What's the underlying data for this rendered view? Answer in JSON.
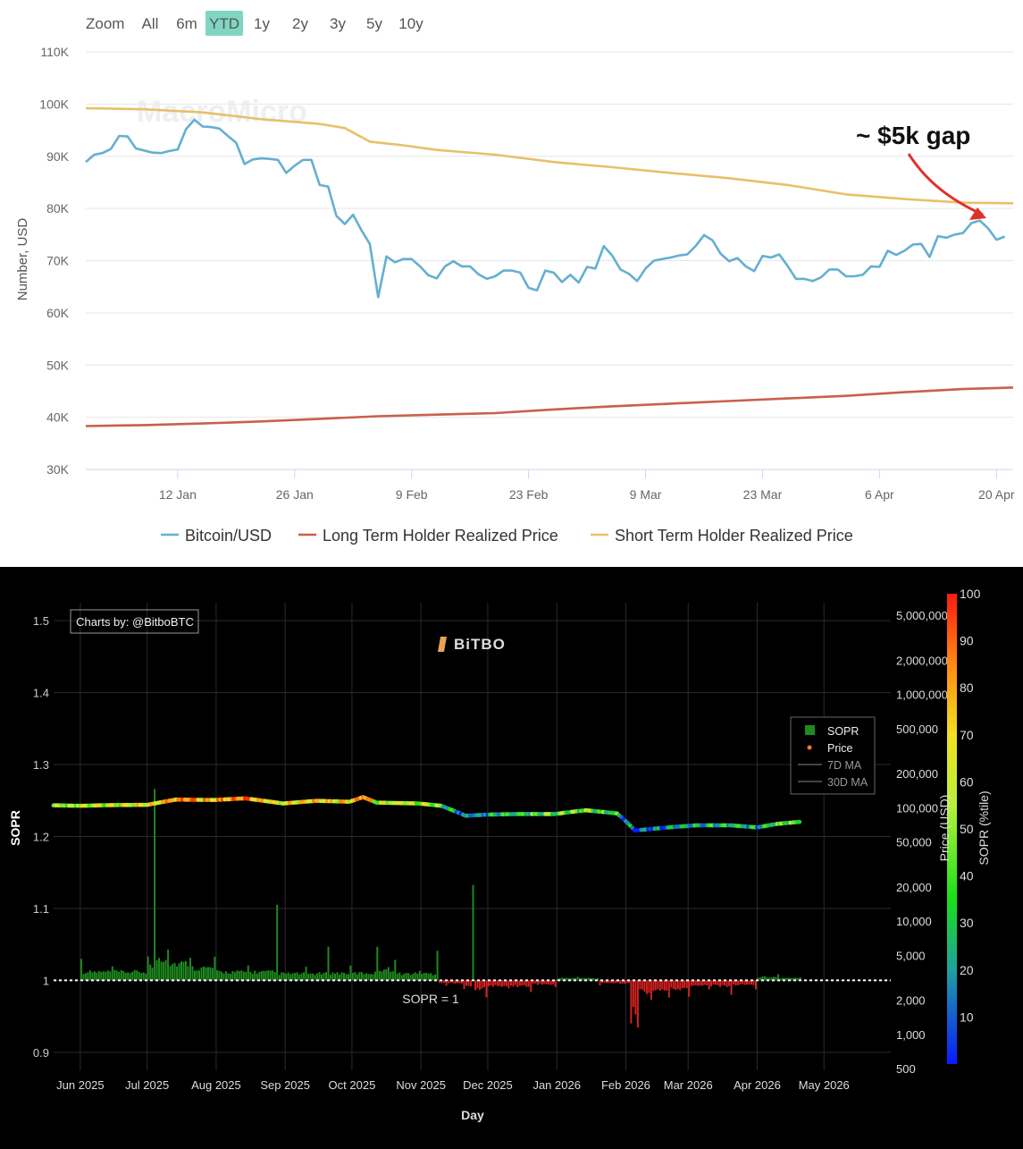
{
  "top_chart": {
    "zoom": {
      "label": "Zoom",
      "options": [
        "All",
        "6m",
        "YTD",
        "1y",
        "2y",
        "3y",
        "5y",
        "10y"
      ],
      "selected": "YTD",
      "selected_color": "#7fd6c2"
    },
    "watermark": "MacroMicro",
    "annotation": "~ $5k gap",
    "annotation_color": "#e0302a"
  },
  "bottom_chart": {
    "credit": "Charts by: @BitboBTC",
    "logo": "BiTBO",
    "sopr_line_label": "SOPR = 1",
    "legend": [
      "SOPR",
      "Price",
      "7D MA",
      "30D MA"
    ]
  },
  "chart_data": [
    {
      "type": "line",
      "title": "",
      "xlabel": "",
      "ylabel": "Number, USD",
      "ylim": [
        30000,
        110000
      ],
      "yticks": [
        "30K",
        "40K",
        "50K",
        "60K",
        "70K",
        "80K",
        "90K",
        "100K",
        "110K"
      ],
      "xticks": [
        "12 Jan",
        "26 Jan",
        "9 Feb",
        "23 Feb",
        "9 Mar",
        "23 Mar",
        "6 Apr",
        "20 Apr"
      ],
      "x_range": [
        "2026-01-01",
        "2026-04-22"
      ],
      "grid": true,
      "legend_position": "bottom",
      "series": [
        {
          "name": "Bitcoin/USD",
          "color": "#65afd1",
          "points": [
            [
              "2026-01-01",
              88900
            ],
            [
              "2026-01-02",
              90300
            ],
            [
              "2026-01-03",
              90600
            ],
            [
              "2026-01-04",
              91400
            ],
            [
              "2026-01-05",
              93900
            ],
            [
              "2026-01-06",
              93800
            ],
            [
              "2026-01-07",
              91500
            ],
            [
              "2026-01-08",
              91100
            ],
            [
              "2026-01-09",
              90700
            ],
            [
              "2026-01-10",
              90600
            ],
            [
              "2026-01-11",
              91000
            ],
            [
              "2026-01-12",
              91300
            ],
            [
              "2026-01-13",
              95200
            ],
            [
              "2026-01-14",
              97000
            ],
            [
              "2026-01-15",
              95700
            ],
            [
              "2026-01-16",
              95600
            ],
            [
              "2026-01-17",
              95300
            ],
            [
              "2026-01-18",
              93900
            ],
            [
              "2026-01-19",
              92600
            ],
            [
              "2026-01-20",
              88500
            ],
            [
              "2026-01-21",
              89400
            ],
            [
              "2026-01-22",
              89600
            ],
            [
              "2026-01-23",
              89500
            ],
            [
              "2026-01-24",
              89300
            ],
            [
              "2026-01-25",
              86800
            ],
            [
              "2026-01-26",
              88200
            ],
            [
              "2026-01-27",
              89300
            ],
            [
              "2026-01-28",
              89300
            ],
            [
              "2026-01-29",
              84500
            ],
            [
              "2026-01-30",
              84200
            ],
            [
              "2026-01-31",
              78600
            ],
            [
              "2026-02-01",
              77000
            ],
            [
              "2026-02-02",
              78800
            ],
            [
              "2026-02-03",
              75800
            ],
            [
              "2026-02-04",
              73200
            ],
            [
              "2026-02-05",
              63000
            ],
            [
              "2026-02-06",
              70800
            ],
            [
              "2026-02-07",
              69700
            ],
            [
              "2026-02-08",
              70300
            ],
            [
              "2026-02-09",
              70300
            ],
            [
              "2026-02-10",
              68900
            ],
            [
              "2026-02-11",
              67200
            ],
            [
              "2026-02-12",
              66600
            ],
            [
              "2026-02-13",
              68900
            ],
            [
              "2026-02-14",
              69900
            ],
            [
              "2026-02-15",
              68900
            ],
            [
              "2026-02-16",
              68900
            ],
            [
              "2026-02-17",
              67400
            ],
            [
              "2026-02-18",
              66500
            ],
            [
              "2026-02-19",
              67000
            ],
            [
              "2026-02-20",
              68100
            ],
            [
              "2026-02-21",
              68100
            ],
            [
              "2026-02-22",
              67700
            ],
            [
              "2026-02-23",
              64800
            ],
            [
              "2026-02-24",
              64300
            ],
            [
              "2026-02-25",
              68100
            ],
            [
              "2026-02-26",
              67700
            ],
            [
              "2026-02-27",
              65900
            ],
            [
              "2026-02-28",
              67300
            ],
            [
              "2026-03-01",
              65800
            ],
            [
              "2026-03-02",
              68800
            ],
            [
              "2026-03-03",
              68500
            ],
            [
              "2026-03-04",
              72800
            ],
            [
              "2026-03-05",
              71000
            ],
            [
              "2026-03-06",
              68300
            ],
            [
              "2026-03-07",
              67500
            ],
            [
              "2026-03-08",
              66100
            ],
            [
              "2026-03-09",
              68500
            ],
            [
              "2026-03-10",
              70000
            ],
            [
              "2026-03-11",
              70300
            ],
            [
              "2026-03-12",
              70600
            ],
            [
              "2026-03-13",
              71000
            ],
            [
              "2026-03-14",
              71200
            ],
            [
              "2026-03-15",
              72800
            ],
            [
              "2026-03-16",
              74900
            ],
            [
              "2026-03-17",
              73900
            ],
            [
              "2026-03-18",
              71300
            ],
            [
              "2026-03-19",
              69900
            ],
            [
              "2026-03-20",
              70500
            ],
            [
              "2026-03-21",
              68900
            ],
            [
              "2026-03-22",
              68000
            ],
            [
              "2026-03-23",
              70900
            ],
            [
              "2026-03-24",
              70600
            ],
            [
              "2026-03-25",
              71200
            ],
            [
              "2026-03-26",
              69000
            ],
            [
              "2026-03-27",
              66500
            ],
            [
              "2026-03-28",
              66500
            ],
            [
              "2026-03-29",
              66100
            ],
            [
              "2026-03-30",
              66800
            ],
            [
              "2026-03-31",
              68300
            ],
            [
              "2026-04-01",
              68300
            ],
            [
              "2026-04-02",
              67000
            ],
            [
              "2026-04-03",
              67000
            ],
            [
              "2026-04-04",
              67300
            ],
            [
              "2026-04-05",
              68900
            ],
            [
              "2026-04-06",
              68800
            ],
            [
              "2026-04-07",
              71900
            ],
            [
              "2026-04-08",
              71100
            ],
            [
              "2026-04-09",
              71900
            ],
            [
              "2026-04-10",
              73100
            ],
            [
              "2026-04-11",
              73200
            ],
            [
              "2026-04-12",
              70700
            ],
            [
              "2026-04-13",
              74700
            ],
            [
              "2026-04-14",
              74400
            ],
            [
              "2026-04-15",
              75000
            ],
            [
              "2026-04-16",
              75300
            ],
            [
              "2026-04-17",
              77200
            ],
            [
              "2026-04-18",
              77700
            ],
            [
              "2026-04-19",
              76200
            ],
            [
              "2026-04-20",
              74000
            ],
            [
              "2026-04-21",
              74600
            ]
          ]
        },
        {
          "name": "Long Term Holder Realized Price",
          "color": "#c8604c",
          "points": [
            [
              "2026-01-01",
              38300
            ],
            [
              "2026-01-08",
              38500
            ],
            [
              "2026-01-15",
              38800
            ],
            [
              "2026-01-22",
              39200
            ],
            [
              "2026-01-29",
              39700
            ],
            [
              "2026-02-05",
              40200
            ],
            [
              "2026-02-12",
              40500
            ],
            [
              "2026-02-19",
              40800
            ],
            [
              "2026-02-26",
              41500
            ],
            [
              "2026-03-05",
              42100
            ],
            [
              "2026-03-12",
              42600
            ],
            [
              "2026-03-19",
              43100
            ],
            [
              "2026-03-26",
              43600
            ],
            [
              "2026-04-02",
              44100
            ],
            [
              "2026-04-09",
              44800
            ],
            [
              "2026-04-16",
              45400
            ],
            [
              "2026-04-22",
              45700
            ]
          ]
        },
        {
          "name": "Short Term Holder Realized Price",
          "color": "#e8c06a",
          "points": [
            [
              "2026-01-01",
              99200
            ],
            [
              "2026-01-08",
              99000
            ],
            [
              "2026-01-15",
              98400
            ],
            [
              "2026-01-22",
              97100
            ],
            [
              "2026-01-29",
              96200
            ],
            [
              "2026-02-01",
              95400
            ],
            [
              "2026-02-04",
              92800
            ],
            [
              "2026-02-08",
              92100
            ],
            [
              "2026-02-12",
              91200
            ],
            [
              "2026-02-19",
              90300
            ],
            [
              "2026-02-26",
              88900
            ],
            [
              "2026-03-05",
              87900
            ],
            [
              "2026-03-12",
              86800
            ],
            [
              "2026-03-19",
              85800
            ],
            [
              "2026-03-26",
              84500
            ],
            [
              "2026-04-02",
              82700
            ],
            [
              "2026-04-09",
              81800
            ],
            [
              "2026-04-16",
              81100
            ],
            [
              "2026-04-22",
              81000
            ]
          ]
        }
      ]
    },
    {
      "type": "bar",
      "title": "",
      "xlabel": "Day",
      "ylabel": "SOPR",
      "ylim": [
        0.875,
        1.525
      ],
      "yticks": [
        "0.9",
        "1",
        "1.1",
        "1.2",
        "1.3",
        "1.4",
        "1.5"
      ],
      "xticks": [
        "Jun 2025",
        "Jul 2025",
        "Aug 2025",
        "Sep 2025",
        "Oct 2025",
        "Nov 2025",
        "Dec 2025",
        "Jan 2026",
        "Feb 2026",
        "Mar 2026",
        "Apr 2026",
        "May 2026"
      ],
      "x_range": [
        "2025-05-20",
        "2026-05-31"
      ],
      "grid": true,
      "legend_position": "top-right",
      "price_axis": {
        "label": "Price (USD)",
        "scale": "log",
        "ticks": [
          "500",
          "1,000",
          "2,000",
          "5,000",
          "10,000",
          "20,000",
          "50,000",
          "100,000",
          "200,000",
          "500,000",
          "1,000,000",
          "2,000,000",
          "5,000,000"
        ]
      },
      "colorbar": {
        "label": "SOPR (%tile)",
        "ticks": [
          "10",
          "20",
          "30",
          "40",
          "50",
          "60",
          "70",
          "80",
          "90",
          "100"
        ]
      },
      "reference_line": 1,
      "sopr_series": {
        "name": "SOPR",
        "colors": {
          "above": "#1f8a1f",
          "below": "#d42020"
        },
        "points": [
          [
            "2025-06-01",
            1.02
          ],
          [
            "2025-06-15",
            1.015
          ],
          [
            "2025-07-01",
            1.025
          ],
          [
            "2025-07-04",
            1.18
          ],
          [
            "2025-07-10",
            1.04
          ],
          [
            "2025-07-20",
            1.03
          ],
          [
            "2025-07-31",
            1.022
          ],
          [
            "2025-08-15",
            1.015
          ],
          [
            "2025-08-28",
            1.073
          ],
          [
            "2025-09-10",
            1.012
          ],
          [
            "2025-09-20",
            1.044
          ],
          [
            "2025-09-30",
            1.013
          ],
          [
            "2025-10-12",
            1.04
          ],
          [
            "2025-10-20",
            1.02
          ],
          [
            "2025-10-31",
            1.012
          ],
          [
            "2025-11-08",
            1.038
          ],
          [
            "2025-11-12",
            0.995
          ],
          [
            "2025-11-20",
            0.988
          ],
          [
            "2025-11-24",
            1.1
          ],
          [
            "2025-11-30",
            0.985
          ],
          [
            "2025-12-10",
            0.99
          ],
          [
            "2025-12-20",
            0.988
          ],
          [
            "2025-12-31",
            0.993
          ],
          [
            "2026-01-10",
            1.004
          ],
          [
            "2026-01-20",
            0.995
          ],
          [
            "2026-02-03",
            0.95
          ],
          [
            "2026-02-06",
            0.947
          ],
          [
            "2026-02-12",
            0.98
          ],
          [
            "2026-02-20",
            0.982
          ],
          [
            "2026-03-01",
            0.985
          ],
          [
            "2026-03-10",
            0.99
          ],
          [
            "2026-03-20",
            0.985
          ],
          [
            "2026-03-31",
            0.992
          ],
          [
            "2026-04-10",
            1.006
          ],
          [
            "2026-04-20",
            1.004
          ]
        ]
      },
      "price_series": {
        "name": "Price",
        "points": [
          [
            "2025-05-20",
            105000,
            45
          ],
          [
            "2025-06-01",
            104000,
            60
          ],
          [
            "2025-06-15",
            105500,
            52
          ],
          [
            "2025-07-01",
            106000,
            70
          ],
          [
            "2025-07-14",
            118000,
            82
          ],
          [
            "2025-07-31",
            117000,
            74
          ],
          [
            "2025-08-14",
            121000,
            86
          ],
          [
            "2025-08-31",
            109000,
            64
          ],
          [
            "2025-09-15",
            115000,
            70
          ],
          [
            "2025-09-30",
            113000,
            66
          ],
          [
            "2025-10-06",
            124000,
            92
          ],
          [
            "2025-10-12",
            111000,
            58
          ],
          [
            "2025-10-31",
            109000,
            55
          ],
          [
            "2025-11-10",
            104000,
            40
          ],
          [
            "2025-11-21",
            85000,
            12
          ],
          [
            "2025-12-01",
            87000,
            22
          ],
          [
            "2025-12-15",
            88000,
            32
          ],
          [
            "2025-12-31",
            88000,
            40
          ],
          [
            "2026-01-14",
            95000,
            45
          ],
          [
            "2026-01-28",
            89000,
            30
          ],
          [
            "2026-02-05",
            63000,
            8
          ],
          [
            "2026-02-20",
            67000,
            18
          ],
          [
            "2026-03-05",
            70000,
            24
          ],
          [
            "2026-03-20",
            70000,
            28
          ],
          [
            "2026-04-01",
            67000,
            22
          ],
          [
            "2026-04-10",
            72000,
            38
          ],
          [
            "2026-04-20",
            75000,
            45
          ]
        ]
      },
      "ma_series": [
        {
          "name": "7D MA"
        },
        {
          "name": "30D MA"
        }
      ]
    }
  ]
}
